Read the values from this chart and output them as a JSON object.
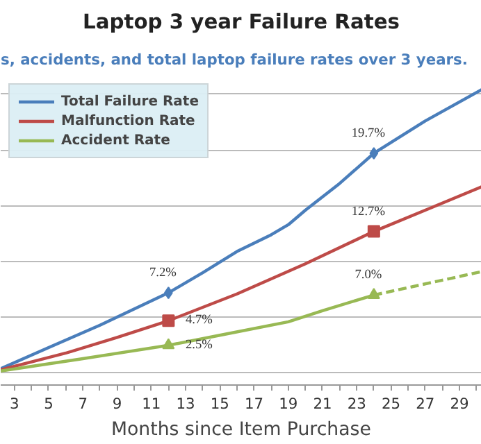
{
  "chart_data": {
    "type": "line",
    "title": "Laptop 3 year Failure Rates",
    "subtitle": "s, accidents, and total laptop failure rates over 3 years.",
    "xlabel": "Months since Item Purchase",
    "xlim": [
      2.2,
      30.3
    ],
    "xticks": [
      3,
      {
        "value": 4,
        "label": null
      },
      5,
      {
        "value": 6,
        "label": null
      },
      7,
      {
        "value": 8,
        "label": null
      },
      9,
      {
        "value": 10,
        "label": null
      },
      11,
      {
        "value": 12,
        "label": null
      },
      13,
      {
        "value": 14,
        "label": null
      },
      15,
      {
        "value": 16,
        "label": null
      },
      17,
      {
        "value": 18,
        "label": null
      },
      19,
      {
        "value": 20,
        "label": null
      },
      21,
      {
        "value": 22,
        "label": null
      },
      23,
      {
        "value": 24,
        "label": null
      },
      25,
      {
        "value": 26,
        "label": null
      },
      27,
      {
        "value": 28,
        "label": null
      },
      29,
      {
        "value": 30,
        "label": null
      }
    ],
    "tick_labels": "x",
    "grid": "y",
    "legend": "top left",
    "series": [
      {
        "name": "Total Failure Rate",
        "color": "#4a7ebb",
        "line_style": "solid",
        "x": [
          2.2,
          5,
          8,
          12,
          14,
          16,
          18,
          19,
          20,
          22,
          24,
          27,
          30.3
        ],
        "values": [
          0.4,
          2.3,
          4.3,
          7.2,
          9.0,
          10.9,
          12.4,
          13.3,
          14.6,
          17.0,
          19.7,
          22.6,
          25.4
        ]
      },
      {
        "name": "Malfunction Rate",
        "color": "#be4b48",
        "line_style": "solid",
        "x": [
          2.2,
          6,
          9,
          12,
          16,
          20,
          24,
          27,
          30.3
        ],
        "values": [
          0.3,
          1.8,
          3.2,
          4.7,
          7.1,
          9.8,
          12.7,
          14.6,
          16.7
        ]
      },
      {
        "name": "Accident Rate",
        "color": "#98b954",
        "line_style": "solid",
        "x": [
          2.2,
          7,
          12,
          15,
          19,
          21,
          24
        ],
        "values": [
          0.2,
          1.3,
          2.5,
          3.4,
          4.6,
          5.6,
          7.0
        ]
      },
      {
        "color": "#98b954",
        "line_style": "dashed",
        "x": [
          24,
          30.3
        ],
        "values": [
          7.0,
          9.1
        ]
      },
      {
        "color": "#4a7ebb",
        "type": "scatter",
        "marker": "diamond",
        "x": [
          12,
          24
        ],
        "values": [
          7.2,
          19.7
        ],
        "value_labels": [
          "7.2%",
          "19.7%"
        ]
      },
      {
        "color": "#be4b48",
        "type": "scatter",
        "marker": "square",
        "x": [
          12,
          24
        ],
        "values": [
          4.7,
          12.7
        ],
        "value_labels": [
          "4.7%",
          "12.7%"
        ]
      },
      {
        "color": "#98b954",
        "type": "scatter",
        "marker": "triangle",
        "x": [
          12,
          24
        ],
        "values": [
          2.5,
          7.0
        ],
        "value_labels": [
          "2.5%",
          "7.0%"
        ]
      }
    ]
  }
}
